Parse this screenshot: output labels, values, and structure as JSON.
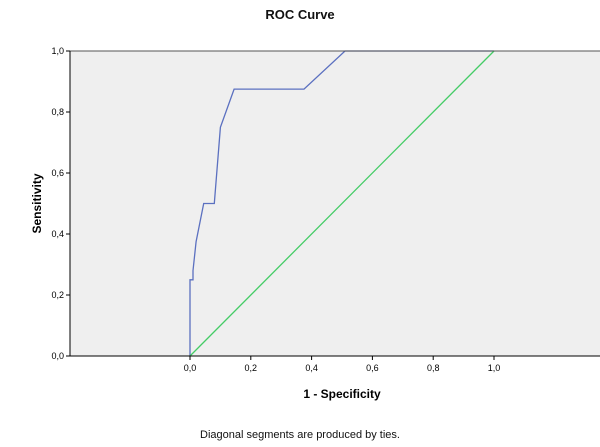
{
  "chart_data": {
    "type": "line",
    "title": "ROC Curve",
    "xlabel": "1 - Specificity",
    "ylabel": "Sensitivity",
    "footnote": "Diagonal segments are produced by ties.",
    "xlim": [
      0,
      1
    ],
    "ylim": [
      0,
      1
    ],
    "x_ticks": [
      "0,0",
      "0,2",
      "0,4",
      "0,6",
      "0,8",
      "1,0"
    ],
    "y_ticks": [
      "0,0",
      "0,2",
      "0,4",
      "0,6",
      "0,8",
      "1,0"
    ],
    "x_tick_values": [
      0,
      0.2,
      0.4,
      0.6,
      0.8,
      1.0
    ],
    "y_tick_values": [
      0,
      0.2,
      0.4,
      0.6,
      0.8,
      1.0
    ],
    "grid": false,
    "series": [
      {
        "color": "#5b70c0",
        "x": [
          0,
          0,
          0.01,
          0.01,
          0.02,
          0.045,
          0.08,
          0.1,
          0.145,
          0.375,
          0.51,
          1.0
        ],
        "y": [
          0,
          0.25,
          0.25,
          0.28,
          0.375,
          0.5,
          0.5,
          0.75,
          0.875,
          0.875,
          1.0,
          1.0
        ]
      },
      {
        "color": "#44cc66",
        "x": [
          0,
          1
        ],
        "y": [
          0,
          1
        ]
      }
    ],
    "colors": {
      "plot_background": "#efefef",
      "axis": "#000000"
    }
  }
}
